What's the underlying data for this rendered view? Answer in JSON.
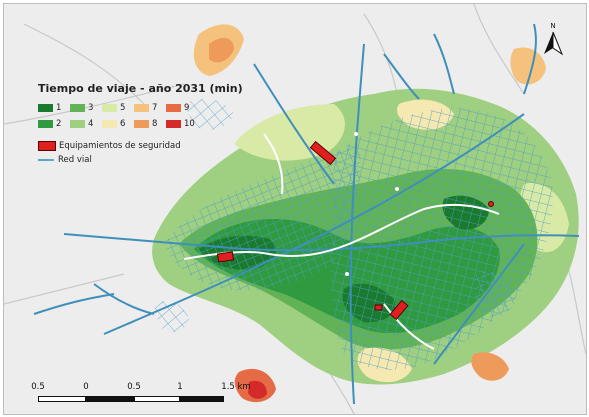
{
  "legend": {
    "title": "Tiempo de viaje - año 2031 (min)",
    "classes": [
      {
        "label": "1",
        "color": "#1a7a2e"
      },
      {
        "label": "2",
        "color": "#2f9a3f"
      },
      {
        "label": "3",
        "color": "#62b356"
      },
      {
        "label": "4",
        "color": "#9fcf80"
      },
      {
        "label": "5",
        "color": "#d8eaa6"
      },
      {
        "label": "6",
        "color": "#f5e8b0"
      },
      {
        "label": "7",
        "color": "#f4c27c"
      },
      {
        "label": "8",
        "color": "#ee9a5a"
      },
      {
        "label": "9",
        "color": "#e56a46"
      },
      {
        "label": "10",
        "color": "#d42a2a"
      }
    ],
    "facilities_label": "Equipamientos de seguridad",
    "road_label": "Red vial",
    "facilities_color": "#e02020",
    "road_color": "#5da5c9"
  },
  "scale_bar": {
    "labels": [
      "0.5",
      "0",
      "0.5",
      "1",
      "1.5 km"
    ]
  },
  "north_arrow": {
    "label": "N"
  },
  "colors": {
    "background": "#ededed",
    "river": "#ffffff",
    "road": "#4f9fc6"
  }
}
